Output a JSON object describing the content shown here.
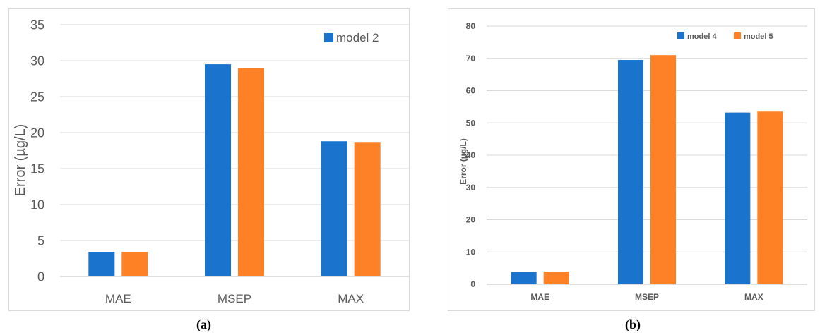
{
  "chart_data": [
    {
      "type": "bar",
      "categories": [
        "MAE",
        "MSEP",
        "MAX"
      ],
      "series": [
        {
          "name": "model 2",
          "color": "#1a73cc",
          "values": [
            3.4,
            29.5,
            18.8
          ]
        },
        {
          "name": "",
          "color": "#ff8126",
          "values": [
            3.4,
            29.0,
            18.6
          ]
        }
      ],
      "ylabel": "Error (µg/L)",
      "ylim": [
        0,
        35
      ],
      "yticks": [
        0,
        5,
        10,
        15,
        20,
        25,
        30,
        35
      ],
      "grid": true,
      "legend": "top-right"
    },
    {
      "type": "bar",
      "categories": [
        "MAE",
        "MSEP",
        "MAX"
      ],
      "series": [
        {
          "name": "model 4",
          "color": "#1a73cc",
          "values": [
            3.8,
            69.5,
            53.2
          ]
        },
        {
          "name": "model 5",
          "color": "#ff8126",
          "values": [
            3.9,
            71.0,
            53.5
          ]
        }
      ],
      "ylabel": "Error (µg/L)",
      "ylim": [
        0,
        80
      ],
      "yticks": [
        0,
        10,
        20,
        30,
        40,
        50,
        60,
        70,
        80
      ],
      "grid": true,
      "legend": "top-right"
    }
  ],
  "captions": {
    "a": "(a)",
    "b": "(b)"
  }
}
